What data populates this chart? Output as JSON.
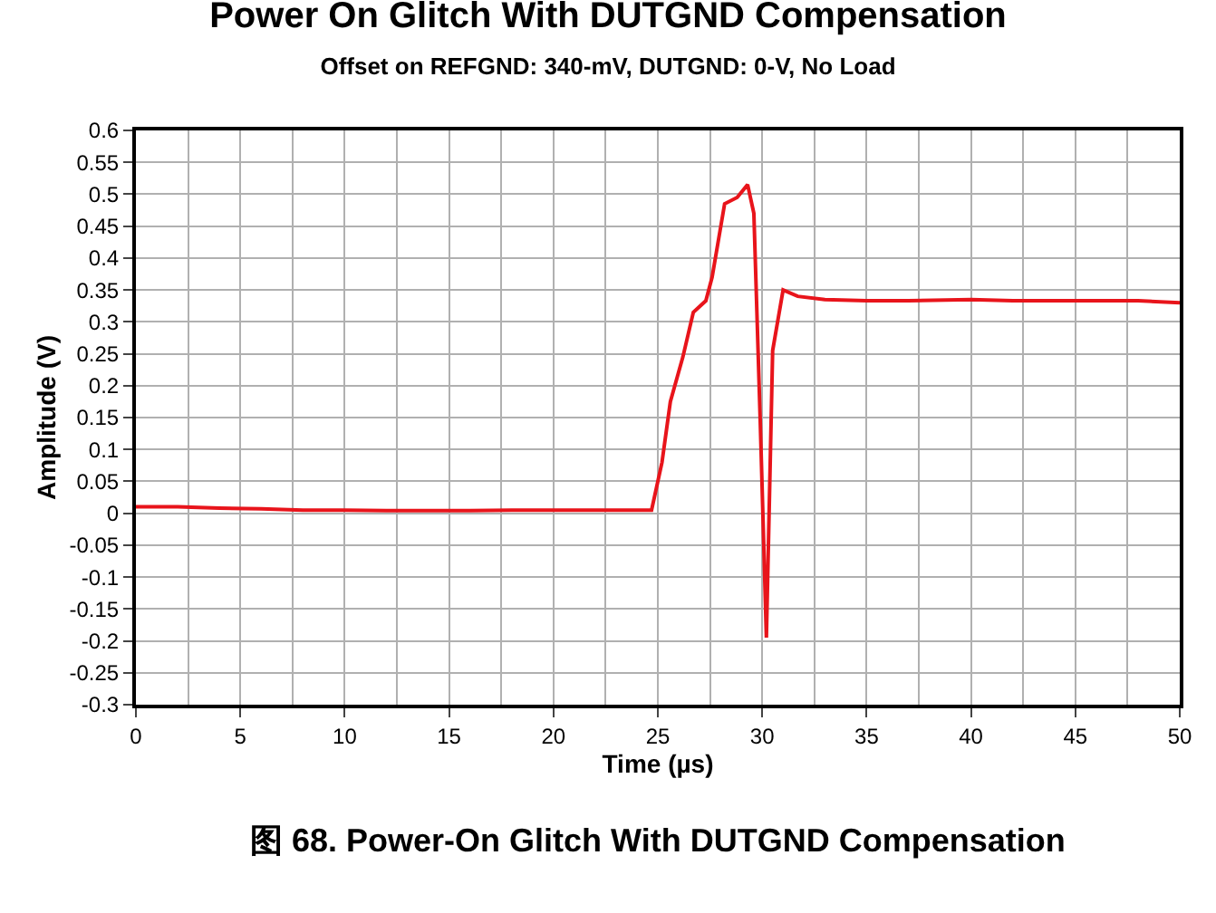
{
  "chart_data": {
    "type": "line",
    "title": "Power On Glitch With DUTGND Compensation",
    "subtitle": "Offset on REFGND: 340-mV, DUTGND: 0-V, No Load",
    "xlabel": "Time (µs)",
    "ylabel": "Amplitude (V)",
    "series": [
      {
        "color": "#e8141b",
        "x": [
          0,
          2,
          4,
          6,
          8,
          10,
          12,
          14,
          16,
          18,
          20,
          22,
          24,
          24.7,
          25.2,
          25.6,
          26.2,
          26.7,
          27.3,
          27.6,
          28.2,
          28.8,
          29.3,
          29.6,
          29.9,
          30.2,
          30.5,
          31.0,
          31.7,
          33,
          35,
          37,
          40,
          42,
          44,
          46,
          48,
          50
        ],
        "values": [
          0.01,
          0.01,
          0.008,
          0.007,
          0.005,
          0.005,
          0.004,
          0.004,
          0.004,
          0.005,
          0.005,
          0.005,
          0.005,
          0.005,
          0.08,
          0.175,
          0.245,
          0.315,
          0.333,
          0.37,
          0.485,
          0.495,
          0.515,
          0.47,
          0.15,
          -0.195,
          0.255,
          0.35,
          0.34,
          0.335,
          0.333,
          0.333,
          0.335,
          0.333,
          0.333,
          0.333,
          0.333,
          0.33
        ]
      }
    ],
    "xlim": [
      0,
      50
    ],
    "xticks": [
      0,
      5,
      10,
      15,
      20,
      25,
      30,
      35,
      40,
      45,
      50
    ],
    "ylim": [
      -0.3,
      0.6
    ],
    "yticks": [
      -0.3,
      -0.25,
      -0.2,
      -0.15,
      -0.1,
      -0.05,
      0,
      0.05,
      0.1,
      0.15,
      0.2,
      0.25,
      0.3,
      0.35,
      0.4,
      0.45,
      0.5,
      0.55,
      0.6
    ],
    "grid": true,
    "line_style": "solid",
    "marker": "none",
    "legend": false,
    "annotations": [
      "图 68. Power-On Glitch With DUTGND Compensation"
    ]
  }
}
